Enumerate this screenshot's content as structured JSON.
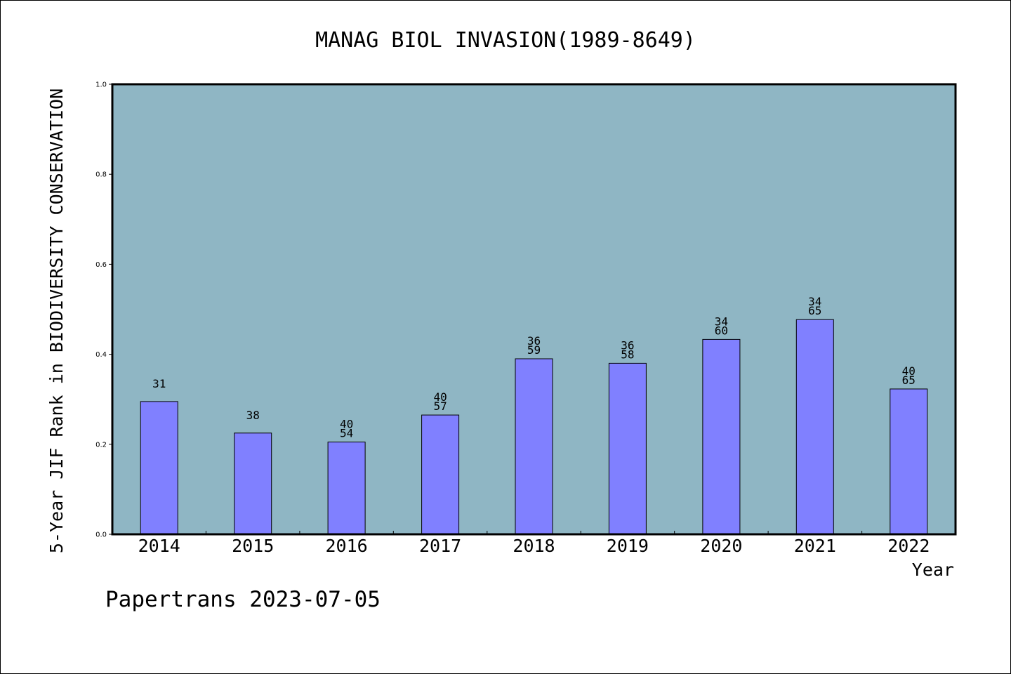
{
  "chart_data": {
    "type": "bar",
    "title": "MANAG BIOL INVASION(1989-8649)",
    "xlabel": "Year",
    "ylabel": "5-Year JIF Rank in BIODIVERSITY CONSERVATION",
    "ylim": [
      0,
      1.0
    ],
    "yticks": [
      "0.0",
      "0.2",
      "0.4",
      "0.6",
      "0.8",
      "1.0"
    ],
    "categories": [
      "2014",
      "2015",
      "2016",
      "2017",
      "2018",
      "2019",
      "2020",
      "2021",
      "2022"
    ],
    "values": [
      0.295,
      0.225,
      0.205,
      0.265,
      0.39,
      0.38,
      0.433,
      0.477,
      0.323
    ],
    "bar_labels": [
      [
        "31"
      ],
      [
        "38"
      ],
      [
        "40",
        "54"
      ],
      [
        "40",
        "57"
      ],
      [
        "36",
        "59"
      ],
      [
        "36",
        "58"
      ],
      [
        "34",
        "60"
      ],
      [
        "34",
        "65"
      ],
      [
        "40",
        "65"
      ]
    ],
    "grid": false,
    "colors": {
      "plot_background": "#8fb6c4",
      "bar_fill": "#8080ff",
      "bar_edge": "#000000",
      "frame": "#000000"
    }
  },
  "footer": "Papertrans 2023-07-05"
}
